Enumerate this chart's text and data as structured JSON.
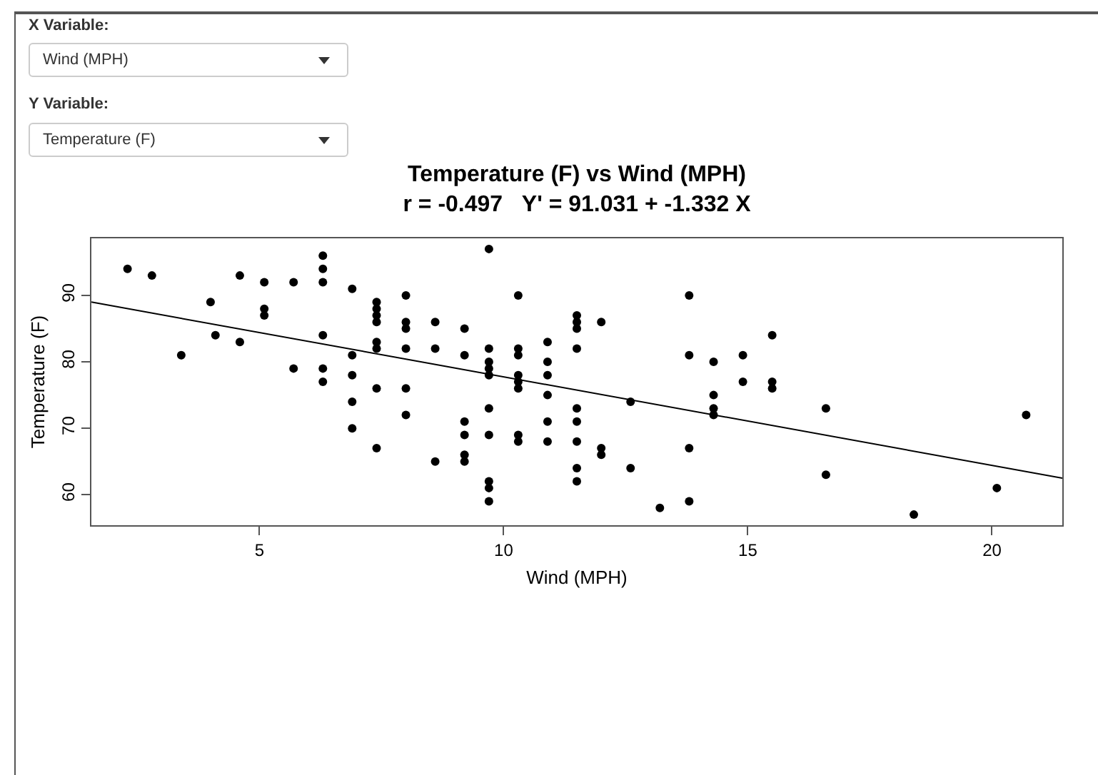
{
  "chart_data": {
    "type": "scatter",
    "title": "Temperature (F) vs Wind (MPH)",
    "subtitle": "r = -0.497   Y' = 91.031 + -1.332 X",
    "xlabel": "Wind (MPH)",
    "ylabel": "Temperature (F)",
    "annotations": [
      "X Variable:",
      "Wind (MPH)",
      "Y Variable:",
      "Temperature (F)"
    ],
    "xlim": [
      1.56,
      21.44
    ],
    "xticks": [
      5,
      10,
      15,
      20
    ],
    "ylim": [
      55.4,
      98.6
    ],
    "yticks": [
      60,
      70,
      80,
      90
    ],
    "grid": false,
    "series": [
      {
        "marker": "circle",
        "color": "#000000",
        "x": [
          2.3,
          2.8,
          3.4,
          4.0,
          4.1,
          4.6,
          4.6,
          5.1,
          5.1,
          5.1,
          5.7,
          5.7,
          6.3,
          6.3,
          6.3,
          6.3,
          6.3,
          6.3,
          6.9,
          6.9,
          6.9,
          6.9,
          6.9,
          7.4,
          7.4,
          7.4,
          7.4,
          7.4,
          7.4,
          7.4,
          7.4,
          8.0,
          8.0,
          8.0,
          8.0,
          8.0,
          8.0,
          8.6,
          8.6,
          8.6,
          9.2,
          9.2,
          9.2,
          9.2,
          9.2,
          9.2,
          9.7,
          9.7,
          9.7,
          9.7,
          9.7,
          9.7,
          9.7,
          9.7,
          9.7,
          9.7,
          10.3,
          10.3,
          10.3,
          10.3,
          10.3,
          10.3,
          10.3,
          10.3,
          10.9,
          10.9,
          10.9,
          10.9,
          10.9,
          10.9,
          11.5,
          11.5,
          11.5,
          11.5,
          11.5,
          11.5,
          11.5,
          11.5,
          11.5,
          12.0,
          12.0,
          12.0,
          12.6,
          12.6,
          13.2,
          13.8,
          13.8,
          13.8,
          13.8,
          14.3,
          14.3,
          14.3,
          14.3,
          14.9,
          14.9,
          15.5,
          15.5,
          15.5,
          16.6,
          16.6,
          18.4,
          20.1,
          20.7
        ],
        "values": [
          94,
          93,
          81,
          89,
          84,
          93,
          83,
          92,
          88,
          87,
          92,
          79,
          96,
          94,
          92,
          84,
          79,
          77,
          91,
          81,
          78,
          74,
          70,
          89,
          88,
          87,
          86,
          83,
          82,
          76,
          67,
          90,
          86,
          85,
          82,
          76,
          72,
          86,
          82,
          65,
          85,
          81,
          71,
          69,
          66,
          65,
          97,
          82,
          80,
          79,
          78,
          73,
          69,
          62,
          61,
          59,
          90,
          82,
          81,
          78,
          77,
          76,
          69,
          68,
          83,
          80,
          78,
          75,
          71,
          68,
          87,
          86,
          85,
          82,
          73,
          71,
          68,
          64,
          62,
          86,
          67,
          66,
          74,
          64,
          58,
          90,
          81,
          67,
          59,
          80,
          75,
          73,
          72,
          81,
          77,
          84,
          77,
          76,
          73,
          63,
          57,
          61,
          72
        ]
      },
      {
        "type": "line",
        "color": "#000000",
        "x": [
          1.56,
          21.44
        ],
        "values": [
          89.0,
          62.5
        ]
      }
    ]
  }
}
